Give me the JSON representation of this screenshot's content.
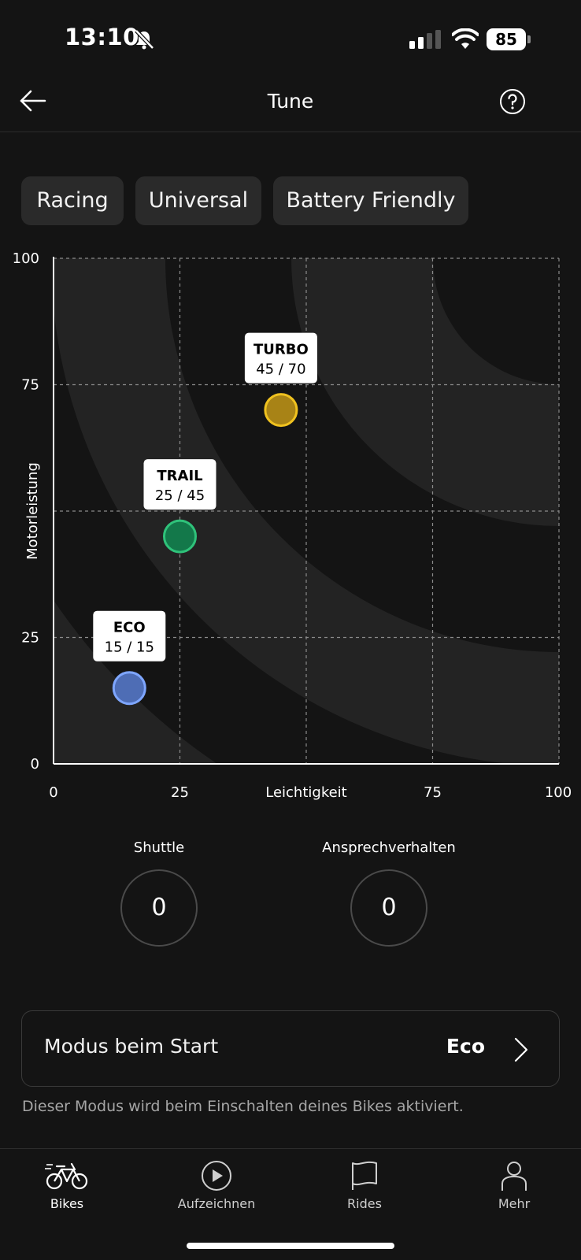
{
  "status_bar": {
    "time": "13:10",
    "battery_percent": "85",
    "icons": [
      "bell-slash-icon",
      "cellular-signal-icon",
      "wifi-icon",
      "battery-icon"
    ]
  },
  "header": {
    "title": "Tune",
    "back_icon": "arrow-left-icon",
    "help_icon": "question-circle-icon"
  },
  "presets": [
    {
      "label": "Racing"
    },
    {
      "label": "Universal"
    },
    {
      "label": "Battery Friendly"
    }
  ],
  "chart_data": {
    "type": "scatter",
    "xlabel": "Leichtigkeit",
    "ylabel": "Motorleistung",
    "xlim": [
      0,
      100
    ],
    "ylim": [
      0,
      100
    ],
    "x_ticks": [
      "0",
      "25",
      "Leichtigkeit",
      "75",
      "100"
    ],
    "y_ticks": [
      "0",
      "25",
      "75",
      "100"
    ],
    "grid": true,
    "points": [
      {
        "name": "ECO",
        "label": "15 / 15",
        "x": 15,
        "y": 15,
        "color": "#4e6db5",
        "border": "#7ea6ff"
      },
      {
        "name": "TRAIL",
        "label": "25 / 45",
        "x": 25,
        "y": 45,
        "color": "#13784a",
        "border": "#2fc27a"
      },
      {
        "name": "TURBO",
        "label": "45 / 70",
        "x": 45,
        "y": 70,
        "color": "#a88316",
        "border": "#f0c21f"
      }
    ]
  },
  "dials": {
    "shuttle": {
      "label": "Shuttle",
      "value": "0"
    },
    "response": {
      "label": "Ansprechverhalten",
      "value": "0"
    }
  },
  "start_mode": {
    "label": "Modus beim Start",
    "value": "Eco",
    "hint": "Dieser Modus wird beim Einschalten deines Bikes aktiviert."
  },
  "tabs": [
    {
      "label": "Bikes",
      "icon": "bike-icon",
      "active": true
    },
    {
      "label": "Aufzeichnen",
      "icon": "play-circle-icon",
      "active": false
    },
    {
      "label": "Rides",
      "icon": "flag-icon",
      "active": false
    },
    {
      "label": "Mehr",
      "icon": "person-icon",
      "active": false
    }
  ],
  "colors": {
    "background": "#141414",
    "chip": "#2a2a2a",
    "band": "#232323"
  }
}
